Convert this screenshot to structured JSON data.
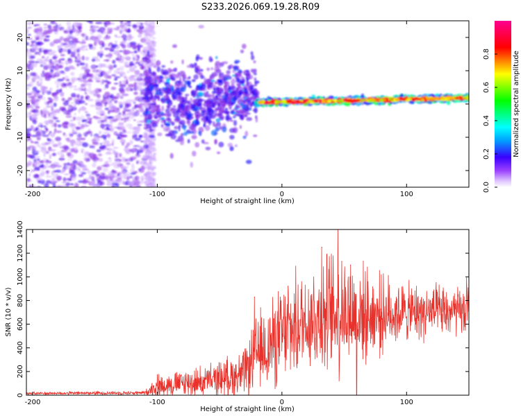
{
  "page_title": "S233.2026.069.19.28.R09",
  "colors": {
    "snr_line": "#e8312a",
    "axis": "#000000",
    "background": "#ffffff"
  },
  "chart_data": [
    {
      "type": "heatmap",
      "name": "spectrogram",
      "xlabel": "Height of straight line (km)",
      "ylabel": "Frequency (Hz)",
      "xlim": [
        -205,
        150
      ],
      "ylim": [
        -25,
        25
      ],
      "xticks": [
        -200,
        -100,
        0,
        100
      ],
      "yticks": [
        -20,
        -10,
        0,
        10,
        20
      ],
      "xtick_labels": [
        "-200",
        "-100",
        "0",
        "100"
      ],
      "ytick_labels": [
        "-20",
        "-10",
        "0",
        "10",
        "20"
      ],
      "colorbar": {
        "label": "Normalized spectral amplitude",
        "range": [
          0,
          1
        ],
        "ticks": [
          0,
          0.2,
          0.4,
          0.6,
          0.8
        ],
        "tick_labels": [
          "0.0",
          "0.2",
          "0.4",
          "0.6",
          "0.8"
        ],
        "colormap": [
          "#ffffff",
          "#c9a0ff",
          "#8a2be2",
          "#1a00ff",
          "#00ffff",
          "#00ff00",
          "#ffff00",
          "#ff0000",
          "#ff0080"
        ]
      },
      "regions": [
        {
          "from_km": -205,
          "to_km": -110,
          "freq_spread_hz": 25,
          "amplitude": 0.12,
          "description": "noise"
        },
        {
          "from_km": -110,
          "to_km": -20,
          "freq_center_hz": 0,
          "freq_spread_hz": 10,
          "amplitude": 0.35,
          "description": "onset"
        },
        {
          "from_km": -20,
          "to_km": 150,
          "freq_center_start_hz": 0.5,
          "freq_center_end_hz": 1.8,
          "freq_spread_hz": 1.5,
          "amplitude": 0.95,
          "description": "carrier"
        }
      ]
    },
    {
      "type": "line",
      "name": "snr",
      "xlabel": "Height of straight line (km)",
      "ylabel": "SNR (10 * v/v)",
      "xlim": [
        -205,
        150
      ],
      "ylim": [
        0,
        1400
      ],
      "xticks": [
        -200,
        -100,
        0,
        100
      ],
      "yticks": [
        0,
        200,
        400,
        600,
        800,
        1000,
        1200,
        1400
      ],
      "xtick_labels": [
        "-200",
        "-100",
        "0",
        "100"
      ],
      "ytick_labels": [
        "0",
        "200",
        "400",
        "600",
        "800",
        "1000",
        "1200",
        "1400"
      ],
      "envelope": [
        {
          "x": -205,
          "mean": 15,
          "noise": 15
        },
        {
          "x": -110,
          "mean": 20,
          "noise": 20
        },
        {
          "x": -100,
          "mean": 80,
          "noise": 120
        },
        {
          "x": -60,
          "mean": 120,
          "noise": 160
        },
        {
          "x": -30,
          "mean": 180,
          "noise": 250
        },
        {
          "x": -20,
          "mean": 350,
          "noise": 400
        },
        {
          "x": 0,
          "mean": 500,
          "noise": 500
        },
        {
          "x": 20,
          "mean": 650,
          "noise": 550
        },
        {
          "x": 45,
          "mean": 700,
          "noise": 650
        },
        {
          "x": 70,
          "mean": 680,
          "noise": 450
        },
        {
          "x": 100,
          "mean": 700,
          "noise": 300
        },
        {
          "x": 150,
          "mean": 700,
          "noise": 250
        }
      ],
      "peaks": [
        {
          "x": -22,
          "y": 830
        },
        {
          "x": 5,
          "y": 920
        },
        {
          "x": 32,
          "y": 1250
        },
        {
          "x": 45,
          "y": 1400
        },
        {
          "x": 48,
          "y": 1130
        },
        {
          "x": 55,
          "y": 1100
        },
        {
          "x": 148,
          "y": 990
        }
      ],
      "dropouts": [
        {
          "x": 60,
          "y": 0
        }
      ]
    }
  ]
}
